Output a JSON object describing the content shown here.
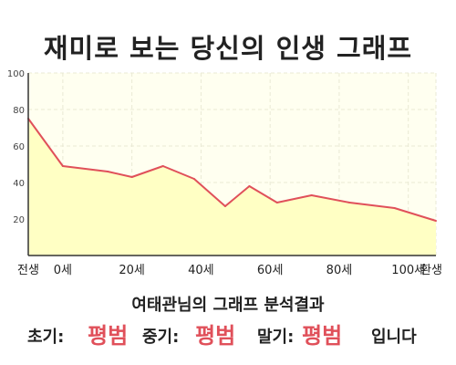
{
  "title": "재미로 보는 당신의 인생 그래프",
  "subtitle": "여태관님의 그래프 분석결과",
  "summary": {
    "early_label": "초기:",
    "early_value": "평범",
    "middle_label": "중기:",
    "middle_value": "평범",
    "late_label": "말기:",
    "late_value": "평범",
    "ending": "입니다"
  },
  "colors": {
    "line": "#e0505a",
    "fill": "#ffffc4",
    "plot_background": "#fffff0",
    "grid": "#e9e9d4",
    "value_text": "#e0505a"
  },
  "chart_data": {
    "type": "area",
    "title": "",
    "xlabel": "",
    "ylabel": "",
    "x": [
      -10,
      0,
      13,
      20,
      29,
      38,
      47,
      54,
      62,
      72,
      83,
      96,
      108
    ],
    "y": [
      75,
      49,
      46,
      43,
      49,
      42,
      27,
      38,
      29,
      33,
      29,
      26,
      19
    ],
    "xlim": [
      -10,
      108
    ],
    "ylim": [
      0,
      100
    ],
    "y_ticks": [
      20,
      40,
      60,
      80,
      100
    ],
    "x_tick_values": [
      -10,
      0,
      20,
      40,
      60,
      80,
      100,
      108
    ],
    "x_tick_labels": [
      "전생",
      "0세",
      "20세",
      "40세",
      "60세",
      "80세",
      "100세",
      "환생"
    ],
    "grid": true,
    "legend": "none"
  }
}
